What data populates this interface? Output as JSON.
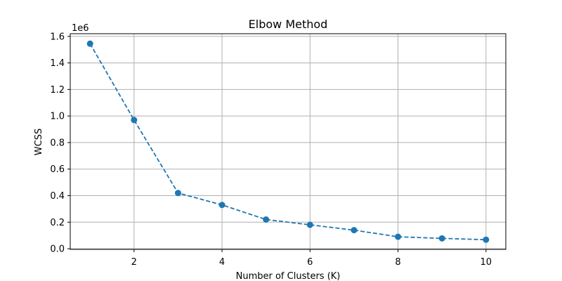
{
  "chart_data": {
    "type": "line",
    "title": "Elbow Method",
    "xlabel": "Number of Clusters (K)",
    "ylabel": "WCSS",
    "y_offset_label": "1e6",
    "x": [
      1,
      2,
      3,
      4,
      5,
      6,
      7,
      8,
      9,
      10
    ],
    "series": [
      {
        "values": [
          1545000,
          970000,
          420000,
          330000,
          220000,
          180000,
          140000,
          90000,
          78000,
          68000
        ]
      }
    ],
    "xlim": [
      0.55,
      10.45
    ],
    "ylim": [
      -5000,
      1620000
    ],
    "x_ticks": [
      2,
      4,
      6,
      8,
      10
    ],
    "x_tick_labels": [
      "2",
      "4",
      "6",
      "8",
      "10"
    ],
    "y_ticks": [
      0,
      200000,
      400000,
      600000,
      800000,
      1000000,
      1200000,
      1400000,
      1600000
    ],
    "y_tick_labels": [
      "0.0",
      "0.2",
      "0.4",
      "0.6",
      "0.8",
      "1.0",
      "1.2",
      "1.4",
      "1.6"
    ],
    "grid": true,
    "line_style": "dashed",
    "marker": "circle",
    "color": "#1f77b4"
  }
}
